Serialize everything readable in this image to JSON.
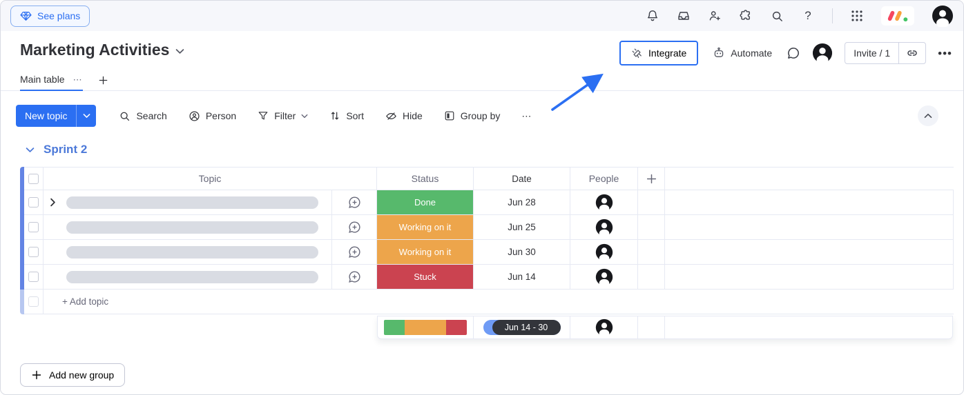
{
  "topbar": {
    "see_plans": "See plans",
    "help": "?"
  },
  "header": {
    "title": "Marketing Activities",
    "integrate_label": "Integrate",
    "automate_label": "Automate",
    "invite_label": "Invite / 1",
    "menu_dots": "•••"
  },
  "tabs": {
    "main_table": "Main table",
    "tab_menu_dots": "⋯"
  },
  "toolbar": {
    "new_topic": "New topic",
    "search": "Search",
    "person": "Person",
    "filter": "Filter",
    "sort": "Sort",
    "hide": "Hide",
    "group_by": "Group by",
    "more_dots": "⋯"
  },
  "board": {
    "group_name": "Sprint 2",
    "columns": {
      "topic": "Topic",
      "status": "Status",
      "date": "Date",
      "people": "People"
    },
    "rows": [
      {
        "status": "Done",
        "status_color": "#57b96c",
        "date": "Jun 28"
      },
      {
        "status": "Working on it",
        "status_color": "#eda54b",
        "date": "Jun 25"
      },
      {
        "status": "Working on it",
        "status_color": "#eda54b",
        "date": "Jun 30"
      },
      {
        "status": "Stuck",
        "status_color": "#cb4350",
        "date": "Jun 14"
      }
    ],
    "add_topic": "+ Add topic",
    "summary": {
      "distribution": [
        {
          "label": "Done",
          "color": "#57b96c",
          "pct": 25
        },
        {
          "label": "Working on it",
          "color": "#eda54b",
          "pct": 50
        },
        {
          "label": "Stuck",
          "color": "#cb4350",
          "pct": 25
        }
      ],
      "date_range": "Jun 14 - 30"
    }
  },
  "footer": {
    "add_new_group": "Add new group"
  },
  "colors": {
    "accent": "#2b6ff2",
    "group": "#6384e4",
    "group_light": "#b7c7f0",
    "group_title": "#4c79d9",
    "grid_line": "#e6e9f3"
  }
}
